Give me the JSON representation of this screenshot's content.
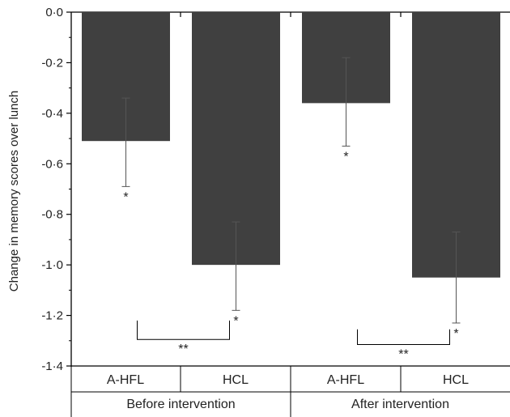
{
  "colors": {
    "bar": "#404040",
    "axis": "#000000",
    "errorbar": "#555555"
  },
  "chart_data": {
    "type": "bar",
    "title": "",
    "xlabel": "",
    "ylabel": "Change in memory scores over lunch",
    "ylim": [
      -1.4,
      0.0
    ],
    "y_ticks": [
      "0·0",
      "-0·2",
      "-0·4",
      "-0·6",
      "-0·8",
      "-1·0",
      "-1·2",
      "-1·4"
    ],
    "y_tick_values": [
      0.0,
      -0.2,
      -0.4,
      -0.6,
      -0.8,
      -1.0,
      -1.2,
      -1.4
    ],
    "grid": false,
    "groups": [
      {
        "label": "Before intervention",
        "bars": [
          {
            "category": "A-HFL",
            "value": -0.51,
            "err_low": -0.69,
            "err_high": -0.34,
            "marker": "*"
          },
          {
            "category": "HCL",
            "value": -1.0,
            "err_low": -1.18,
            "err_high": -0.83,
            "marker": "*"
          }
        ],
        "bracket_marker": "**"
      },
      {
        "label": "After intervention",
        "bars": [
          {
            "category": "A-HFL",
            "value": -0.36,
            "err_low": -0.53,
            "err_high": -0.18,
            "marker": "*"
          },
          {
            "category": "HCL",
            "value": -1.05,
            "err_low": -1.23,
            "err_high": -0.87,
            "marker": "*"
          }
        ],
        "bracket_marker": "**"
      }
    ]
  }
}
